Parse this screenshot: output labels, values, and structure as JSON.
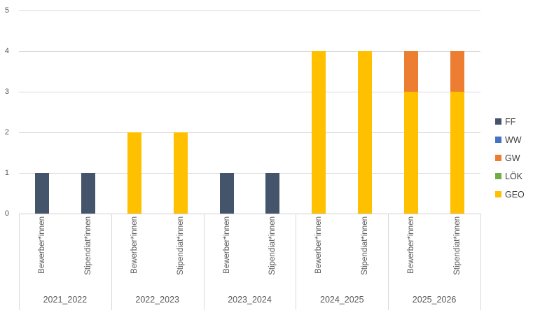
{
  "chart_data": {
    "type": "bar",
    "stacked": true,
    "title": "",
    "xlabel": "",
    "ylabel": "",
    "groups": [
      "2021_2022",
      "2022_2023",
      "2023_2024",
      "2024_2025",
      "2025_2026"
    ],
    "subcategories": [
      "Bewerber*innen",
      "Stipendiat*innen"
    ],
    "series": [
      {
        "name": "FF",
        "color": "#44546A",
        "values": [
          1,
          1,
          0,
          0,
          1,
          1,
          0,
          0,
          0,
          0
        ]
      },
      {
        "name": "WW",
        "color": "#4472C4",
        "values": [
          0,
          0,
          0,
          0,
          0,
          0,
          0,
          0,
          0,
          0
        ]
      },
      {
        "name": "GW",
        "color": "#ED7D31",
        "values": [
          0,
          0,
          0,
          0,
          0,
          0,
          0,
          0,
          1,
          1
        ]
      },
      {
        "name": "LÖK",
        "color": "#70AD47",
        "values": [
          0,
          0,
          0,
          0,
          0,
          0,
          0,
          0,
          0,
          0
        ]
      },
      {
        "name": "GEO",
        "color": "#FFC000",
        "values": [
          0,
          0,
          2,
          2,
          0,
          0,
          4,
          4,
          3,
          3
        ]
      }
    ],
    "stack_order_bottom_to_top": [
      "GEO",
      "LÖK",
      "GW",
      "WW",
      "FF"
    ],
    "y_ticks": [
      "0",
      "1",
      "2",
      "3",
      "4",
      "5"
    ],
    "ylim": [
      0,
      5
    ],
    "grid": true,
    "legend": {
      "position": "right",
      "entries": [
        "FF",
        "WW",
        "GW",
        "LÖK",
        "GEO"
      ]
    },
    "colors": {
      "gridline": "#D9D9D9",
      "axis_text": "#595959",
      "legend_text": "#404040",
      "background": "#FFFFFF"
    }
  }
}
